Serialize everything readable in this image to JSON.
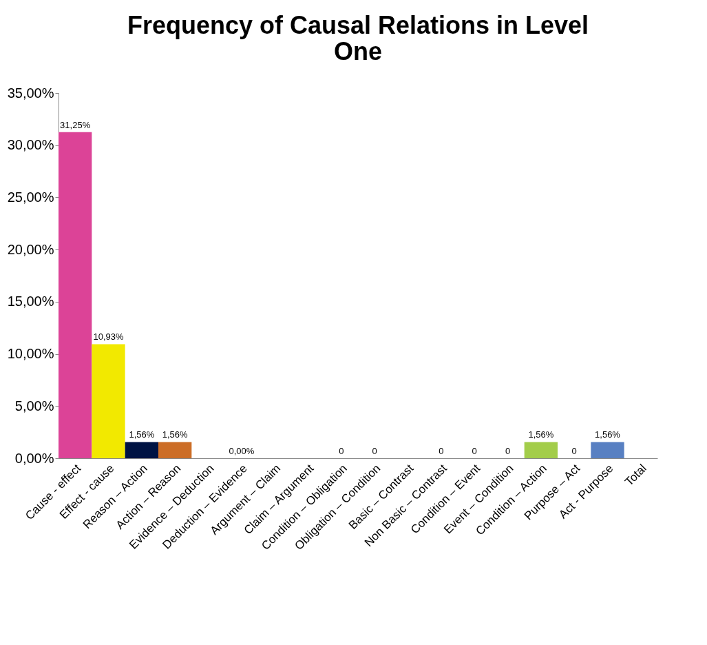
{
  "chart_data": {
    "type": "bar",
    "title": "Frequency of Causal Relations in Level One",
    "categories": [
      "Cause - effect",
      "Effect - cause",
      "Reason – Action",
      "Action – Reason",
      "Evidence – Deduction",
      "Deduction – Evidence",
      "Argument – Claim",
      "Claim – Argument",
      "Condition – Obligation",
      "Obligation – Condition",
      "Basic – Contrast",
      "Non Basic – Contrast",
      "Condition – Event",
      "Event – Condition",
      "Condition – Action",
      "Purpose – Act",
      "Act - Purpose",
      "Total"
    ],
    "values": [
      31.25,
      10.93,
      1.56,
      1.56,
      null,
      0,
      null,
      null,
      0,
      0,
      null,
      0,
      0,
      0,
      1.56,
      0,
      1.56,
      null
    ],
    "value_labels": [
      "31,25%",
      "10,93%",
      "1,56%",
      "1,56%",
      null,
      "0,00%",
      null,
      null,
      "0",
      "0",
      null,
      "0",
      "0",
      "0",
      "1,56%",
      "0",
      "1,56%",
      null
    ],
    "colors": [
      "#dc4397",
      "#f2e900",
      "#001343",
      "#cc6d26",
      "#4f81bd",
      "#4f81bd",
      "#4f81bd",
      "#4f81bd",
      "#4f81bd",
      "#4f81bd",
      "#4f81bd",
      "#4f81bd",
      "#4f81bd",
      "#4f81bd",
      "#a3cd4a",
      "#4f81bd",
      "#5880c2",
      "#4f81bd"
    ],
    "ylim": [
      0,
      35
    ],
    "yticks": [
      {
        "value": 0,
        "label": "0,00%"
      },
      {
        "value": 5,
        "label": "5,00%"
      },
      {
        "value": 10,
        "label": "10,00%"
      },
      {
        "value": 15,
        "label": "15,00%"
      },
      {
        "value": 20,
        "label": "20,00%"
      },
      {
        "value": 25,
        "label": "25,00%"
      },
      {
        "value": 30,
        "label": "30,00%"
      },
      {
        "value": 35,
        "label": "35,00%"
      }
    ],
    "grid": false,
    "legend": false
  }
}
